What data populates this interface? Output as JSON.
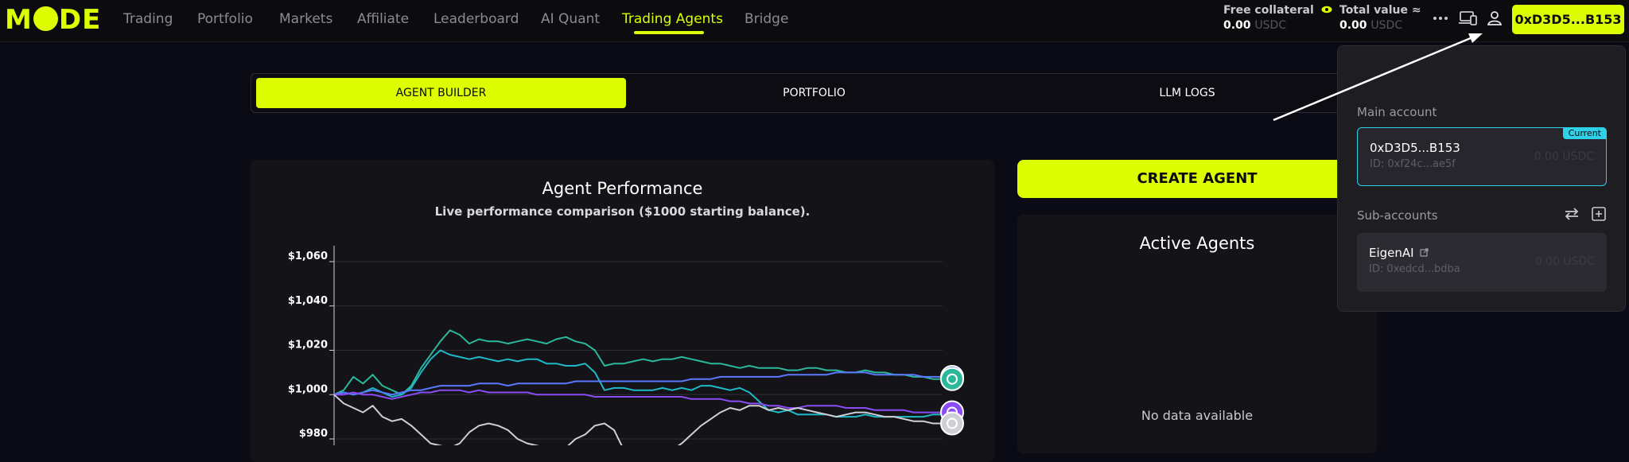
{
  "nav": {
    "logo": "MODE",
    "items": [
      "Trading",
      "Portfolio",
      "Markets",
      "Affiliate",
      "Leaderboard",
      "AI Quant",
      "Trading Agents",
      "Bridge"
    ],
    "active": "Trading Agents"
  },
  "header": {
    "free_collateral_label": "Free collateral",
    "free_collateral_value": "0.00",
    "free_collateral_unit": "USDC",
    "total_value_label": "Total value",
    "total_value_symbol": "≈",
    "total_value_value": "0.00",
    "total_value_unit": "USDC",
    "more_icon": "more-icon",
    "account_button": "0xD3D5...B153"
  },
  "tabs": [
    {
      "label": "AGENT BUILDER",
      "active": true
    },
    {
      "label": "PORTFOLIO",
      "active": false
    },
    {
      "label": "LLM LOGS",
      "active": false
    }
  ],
  "chart_card": {
    "title": "Agent Performance",
    "subtitle": "Live performance comparison ($1000 starting balance)."
  },
  "right": {
    "create_button": "CREATE AGENT",
    "active_title": "Active Agents",
    "no_data": "No data available"
  },
  "dropdown": {
    "main_label": "Main account",
    "main": {
      "name": "0xD3D5...B153",
      "id": "ID: 0xf24c...ae5f",
      "balance": "0.00 USDC",
      "badge": "Current"
    },
    "sub_label": "Sub-accounts",
    "sub": {
      "name": "EigenAI",
      "id": "ID: 0xedcd...bdba",
      "balance": "0.00 USDC"
    }
  },
  "colors": {
    "accent": "#dcfe00",
    "teal": "#2fd1e8"
  },
  "chart_data": {
    "type": "line",
    "title": "Agent Performance",
    "subtitle": "Live performance comparison ($1000 starting balance).",
    "y_ticks": [
      "$1,060",
      "$1,040",
      "$1,020",
      "$1,000",
      "$980"
    ],
    "ylim": [
      975,
      1065
    ],
    "x_count": 64,
    "series": [
      {
        "color": "#2bb89a",
        "values": [
          1000,
          1002,
          1008,
          1005,
          1009,
          1004,
          1002,
          1000,
          1004,
          1012,
          1018,
          1024,
          1029,
          1027,
          1023,
          1025,
          1024,
          1024,
          1023,
          1024,
          1025,
          1024,
          1023,
          1025,
          1026,
          1024,
          1023,
          1020,
          1013,
          1014,
          1014,
          1015,
          1016,
          1015,
          1016,
          1016,
          1017,
          1016,
          1015,
          1014,
          1014,
          1013,
          1012,
          1013,
          1012,
          1012,
          1012,
          1011,
          1011,
          1012,
          1012,
          1011,
          1011,
          1010,
          1010,
          1011,
          1010,
          1010,
          1009,
          1009,
          1008,
          1008,
          1007,
          1007
        ]
      },
      {
        "color": "#1fb8c8",
        "values": [
          1000,
          1001,
          1000,
          1001,
          1003,
          1001,
          999,
          1000,
          1003,
          1010,
          1016,
          1020,
          1018,
          1017,
          1016,
          1017,
          1016,
          1015,
          1016,
          1015,
          1016,
          1016,
          1014,
          1014,
          1013,
          1013,
          1014,
          1010,
          1002,
          1003,
          1003,
          1002,
          1002,
          1002,
          1003,
          1002,
          1003,
          1002,
          1004,
          1004,
          1003,
          1002,
          1003,
          1001,
          997,
          993,
          992,
          993,
          991,
          991,
          991,
          991,
          990,
          990,
          990,
          991,
          990,
          990,
          990,
          990,
          990,
          990,
          991,
          991
        ]
      },
      {
        "color": "#5a78ff",
        "values": [
          1000,
          1001,
          1000,
          1001,
          1002,
          1001,
          1000,
          1001,
          1002,
          1002,
          1003,
          1004,
          1004,
          1004,
          1004,
          1005,
          1005,
          1005,
          1004,
          1005,
          1005,
          1005,
          1005,
          1005,
          1005,
          1006,
          1006,
          1006,
          1006,
          1006,
          1006,
          1006,
          1006,
          1006,
          1006,
          1006,
          1006,
          1007,
          1007,
          1007,
          1008,
          1008,
          1008,
          1008,
          1008,
          1008,
          1008,
          1009,
          1009,
          1009,
          1009,
          1009,
          1010,
          1010,
          1010,
          1010,
          1009,
          1009,
          1009,
          1009,
          1009,
          1008,
          1008,
          1008
        ]
      },
      {
        "color": "#8b4cf5",
        "values": [
          1000,
          1000,
          1001,
          1000,
          1000,
          999,
          998,
          999,
          1000,
          1001,
          1001,
          1002,
          1002,
          1002,
          1001,
          1002,
          1001,
          1001,
          1001,
          1001,
          1001,
          1000,
          1000,
          1000,
          1000,
          1000,
          1000,
          999,
          999,
          999,
          999,
          999,
          999,
          999,
          999,
          999,
          999,
          998,
          998,
          998,
          998,
          997,
          997,
          996,
          996,
          995,
          995,
          994,
          994,
          995,
          995,
          995,
          995,
          994,
          994,
          994,
          993,
          993,
          993,
          993,
          992,
          992,
          992,
          992
        ]
      },
      {
        "color": "#cfcfd6",
        "values": [
          1000,
          996,
          994,
          992,
          995,
          990,
          988,
          989,
          986,
          982,
          978,
          977,
          976,
          978,
          983,
          986,
          987,
          986,
          984,
          980,
          978,
          977,
          976,
          975,
          976,
          980,
          982,
          986,
          987,
          984,
          975,
          973,
          970,
          971,
          972,
          975,
          978,
          982,
          986,
          989,
          992,
          994,
          993,
          995,
          995,
          993,
          994,
          993,
          994,
          993,
          992,
          991,
          990,
          991,
          992,
          992,
          991,
          990,
          990,
          989,
          988,
          988,
          987,
          987
        ]
      }
    ],
    "end_icons": [
      {
        "color": "#5a78ff",
        "series": 2
      },
      {
        "color": "#2bb89a",
        "series": 0
      },
      {
        "color": "#8b4cf5",
        "series": 3
      },
      {
        "color": "#cfcfd6",
        "series": 4
      }
    ]
  }
}
